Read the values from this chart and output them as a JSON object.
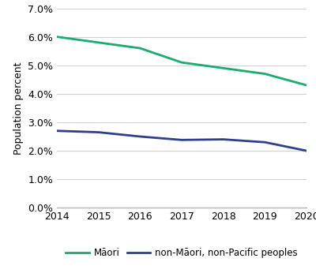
{
  "years": [
    2014,
    2015,
    2016,
    2017,
    2018,
    2019,
    2020
  ],
  "maori": [
    0.06,
    0.058,
    0.056,
    0.051,
    0.049,
    0.047,
    0.043
  ],
  "non_maori": [
    0.027,
    0.0265,
    0.025,
    0.0238,
    0.024,
    0.023,
    0.02
  ],
  "maori_color": "#1aab6d",
  "non_maori_color": "#2e3f8f",
  "maori_label": "Māori",
  "non_maori_label": "non-Māori, non-Pacific peoples",
  "ylabel": "Population percent",
  "ylim": [
    0.0,
    0.07
  ],
  "yticks": [
    0.0,
    0.01,
    0.02,
    0.03,
    0.04,
    0.05,
    0.06,
    0.07
  ],
  "background_color": "#ffffff",
  "line_width": 2.0,
  "grid_color": "#d0d0d0",
  "tick_fontsize": 9,
  "ylabel_fontsize": 9,
  "legend_fontsize": 8.5
}
